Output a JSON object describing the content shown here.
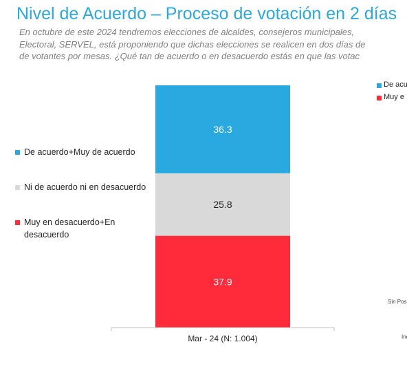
{
  "title": "Nivel de Acuerdo – Proceso de votación en 2 días",
  "subtitle": [
    "En octubre de este 2024 tendremos elecciones de alcaldes, consejeros municipales,",
    "Electoral, SERVEL, está proponiendo que dichas elecciones se realicen en dos días de",
    "de votantes por mesas. ¿Qué tan de acuerdo o en desacuerdo estás en que las votac"
  ],
  "legend_left": [
    {
      "label": "De acuerdo+Muy de acuerdo",
      "color": "#29a9e0"
    },
    {
      "label": "Ni de acuerdo ni en desacuerdo",
      "color": "#d9d9d9"
    },
    {
      "label": "Muy en desacuerdo+En desacuerdo",
      "color": "#ff2b3a"
    }
  ],
  "legend_right": [
    {
      "label": "De acu",
      "color": "#29a9e0"
    },
    {
      "label": "Muy e",
      "color": "#ff2b3a"
    }
  ],
  "side_notes": [
    "Sin Pos",
    "Inc"
  ],
  "chart_data": {
    "type": "bar",
    "stacked": true,
    "categories": [
      "Mar - 24 (N: 1.004)"
    ],
    "series": [
      {
        "name": "Muy en desacuerdo+En desacuerdo",
        "values": [
          37.9
        ],
        "color": "#ff2b3a",
        "label_color": "#ffffff"
      },
      {
        "name": "Ni de acuerdo ni en desacuerdo",
        "values": [
          25.8
        ],
        "color": "#d9d9d9",
        "label_color": "#262626"
      },
      {
        "name": "De acuerdo+Muy de acuerdo",
        "values": [
          36.3
        ],
        "color": "#29a9e0",
        "label_color": "#ffffff"
      }
    ],
    "ylim": [
      0,
      100
    ],
    "grid": false,
    "legend": "left"
  }
}
